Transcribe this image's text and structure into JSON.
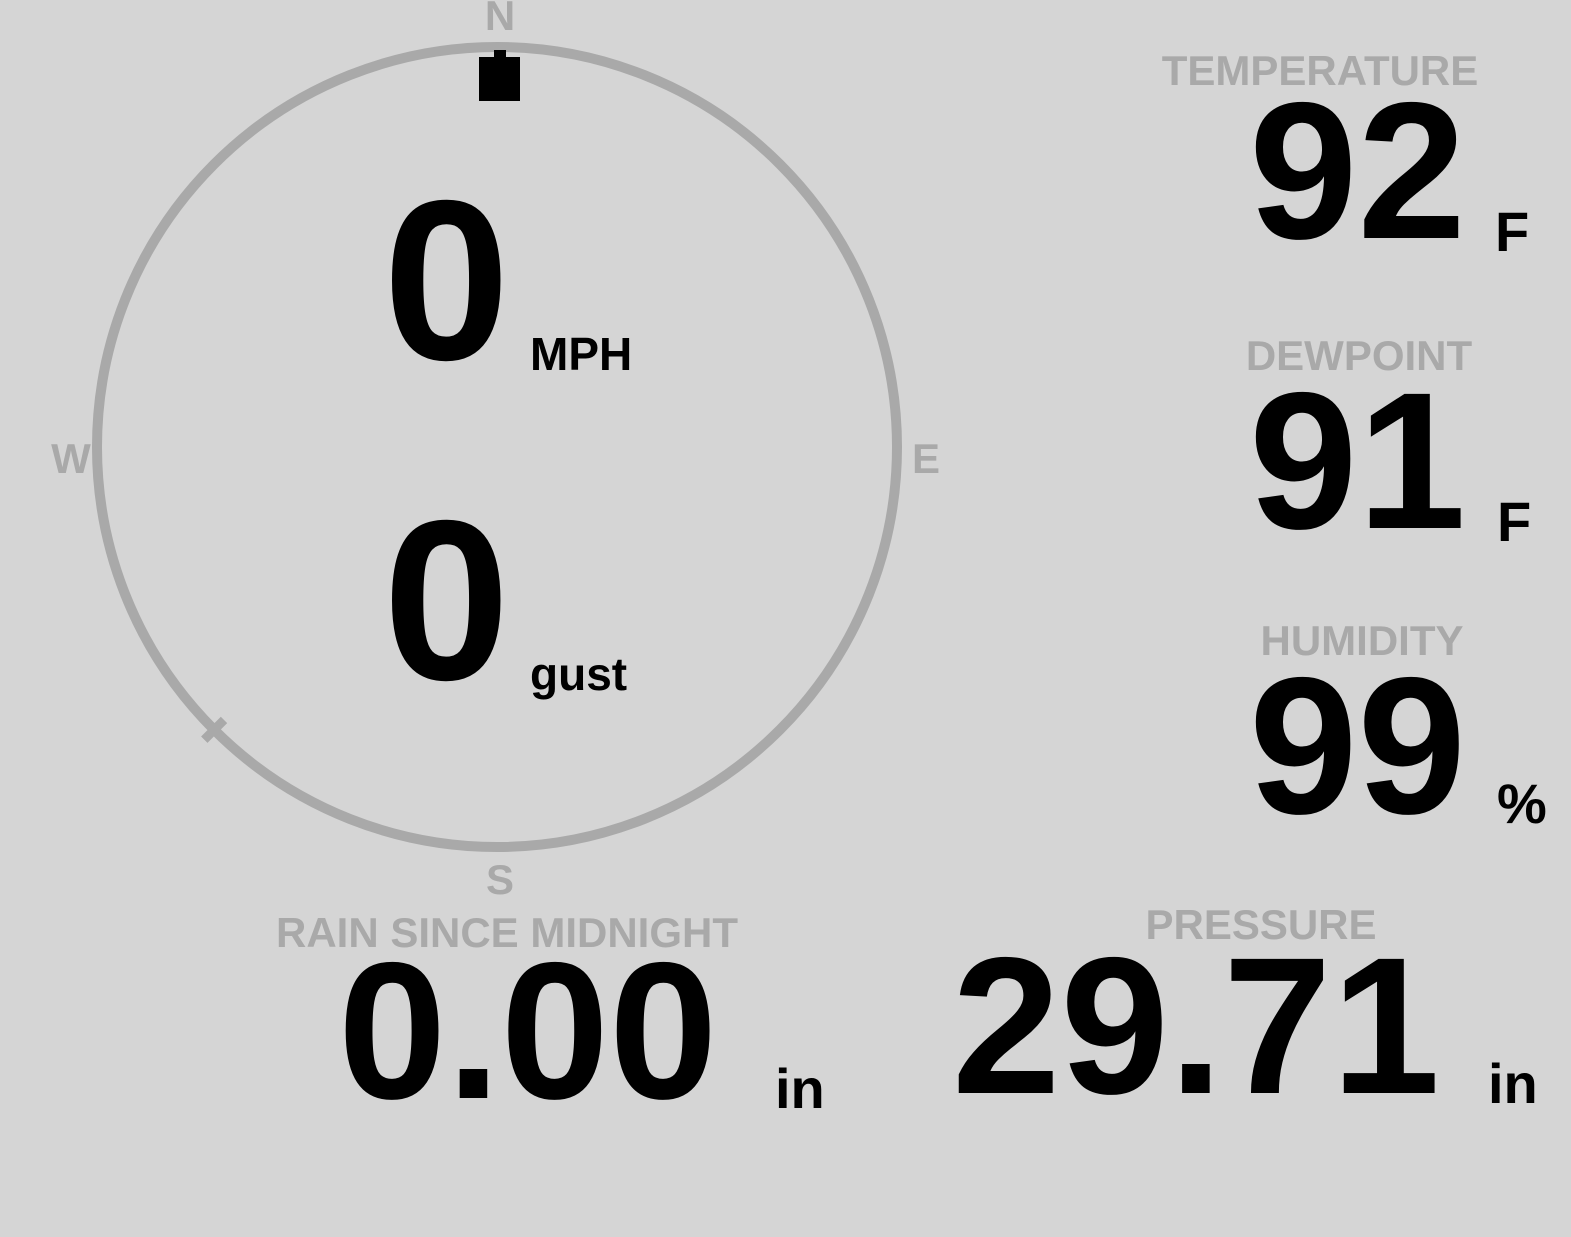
{
  "colors": {
    "background": "#d5d5d5",
    "muted": "#a9a9a9",
    "text": "#000000"
  },
  "wind": {
    "speed": "0",
    "speed_unit": "MPH",
    "gust": "0",
    "gust_unit": "gust",
    "direction": "N",
    "direction_degrees": 0,
    "compass_labels": {
      "n": "N",
      "e": "E",
      "s": "S",
      "w": "W"
    }
  },
  "metrics": {
    "temperature": {
      "label": "TEMPERATURE",
      "value": "92",
      "unit": "F"
    },
    "dewpoint": {
      "label": "DEWPOINT",
      "value": "91",
      "unit": "F"
    },
    "humidity": {
      "label": "HUMIDITY",
      "value": "99",
      "unit": "%"
    },
    "rain_since_midnight": {
      "label": "RAIN SINCE MIDNIGHT",
      "value": "0.00",
      "unit": "in"
    },
    "pressure": {
      "label": "PRESSURE",
      "value": "29.71",
      "unit": "in"
    }
  }
}
